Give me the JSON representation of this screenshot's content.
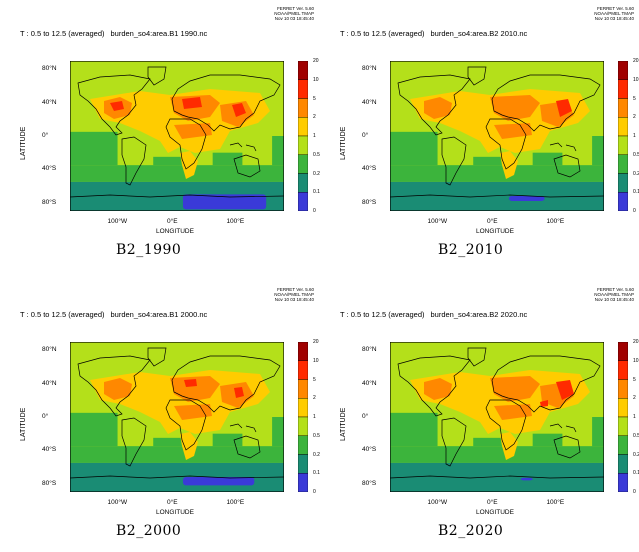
{
  "panels": [
    {
      "id": "b2-1990",
      "header_left": "T : 0.5 to 12.5 (averaged)",
      "header_file": "burden_so4:area.B1 1990.nc",
      "header_right": [
        "FERRET Ver. 5.60",
        "NOAA/PMEL TMAP",
        "Nov 10 03 18:45:40"
      ],
      "caption": "B2_1990",
      "ylabel": "LATITUDE",
      "xlabel": "LONGITUDE",
      "yticks": [
        "80°N",
        "40°N",
        "0°",
        "40°S",
        "80°S"
      ],
      "xticks": [
        "100°W",
        "0°E",
        "100°E"
      ]
    },
    {
      "id": "b2-2010",
      "header_left": "T : 0.5 to 12.5 (averaged)",
      "header_file": "burden_so4:area.B2 2010.nc",
      "header_right": [
        "FERRET Ver. 5.60",
        "NOAA/PMEL TMAP",
        "Nov 10 03 18:45:40"
      ],
      "caption": "B2_2010",
      "ylabel": "LATITUDE",
      "xlabel": "LONGITUDE",
      "yticks": [
        "80°N",
        "40°N",
        "0°",
        "40°S",
        "80°S"
      ],
      "xticks": [
        "100°W",
        "0°E",
        "100°E"
      ]
    },
    {
      "id": "b2-2000",
      "header_left": "T : 0.5 to 12.5 (averaged)",
      "header_file": "burden_so4:area.B1 2000.nc",
      "header_right": [
        "FERRET Ver. 5.60",
        "NOAA/PMEL TMAP",
        "Nov 10 03 18:45:40"
      ],
      "caption": "B2_2000",
      "ylabel": "LATITUDE",
      "xlabel": "LONGITUDE",
      "yticks": [
        "80°N",
        "40°N",
        "0°",
        "40°S",
        "80°S"
      ],
      "xticks": [
        "100°W",
        "0°E",
        "100°E"
      ]
    },
    {
      "id": "b2-2020",
      "header_left": "T : 0.5 to 12.5 (averaged)",
      "header_file": "burden_so4:area.B2 2020.nc",
      "header_right": [
        "FERRET Ver. 5.60",
        "NOAA/PMEL TMAP",
        "Nov 10 03 18:45:40"
      ],
      "caption": "B2_2020",
      "ylabel": "LATITUDE",
      "xlabel": "LONGITUDE",
      "yticks": [
        "80°N",
        "40°N",
        "0°",
        "40°S",
        "80°S"
      ],
      "xticks": [
        "100°W",
        "0°E",
        "100°E"
      ]
    }
  ],
  "colorbar": {
    "levels": [
      "20",
      "10",
      "5",
      "2",
      "1",
      "0.5",
      "0.2",
      "0.1",
      "0"
    ],
    "colors": [
      "#a00000",
      "#ff2a00",
      "#ff8800",
      "#ffcc00",
      "#b4e01a",
      "#3cb43c",
      "#1a8c74",
      "#3a3ad8",
      "#e000ff"
    ]
  }
}
